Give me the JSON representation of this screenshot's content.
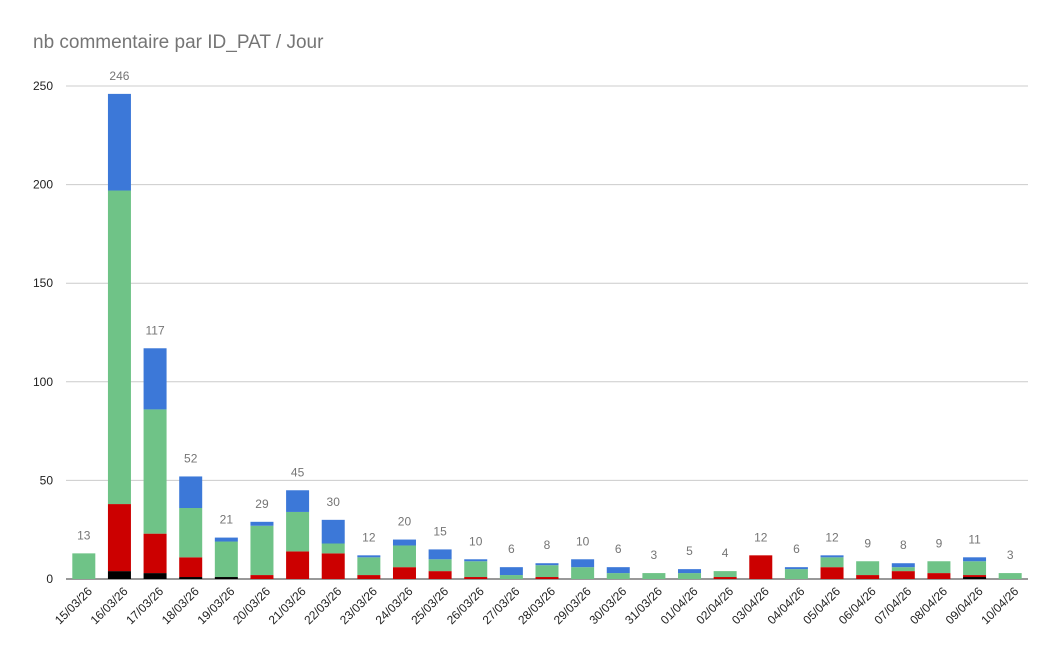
{
  "chart_data": {
    "type": "bar",
    "stacked": true,
    "title": "nb commentaire par ID_PAT / Jour",
    "ylim": [
      0,
      250
    ],
    "yticks": [
      0,
      50,
      100,
      150,
      200,
      250
    ],
    "grid": true,
    "categories": [
      "15/03/26",
      "16/03/26",
      "17/03/26",
      "18/03/26",
      "19/03/26",
      "20/03/26",
      "21/03/26",
      "22/03/26",
      "23/03/26",
      "24/03/26",
      "25/03/26",
      "26/03/26",
      "27/03/26",
      "28/03/26",
      "29/03/26",
      "30/03/26",
      "31/03/26",
      "01/04/26",
      "02/04/26",
      "03/04/26",
      "04/04/26",
      "05/04/26",
      "06/04/26",
      "07/04/26",
      "08/04/26",
      "09/04/26",
      "10/04/26"
    ],
    "series": [
      {
        "color": "#000000",
        "values": [
          0,
          4,
          3,
          1,
          1,
          0,
          0,
          0,
          0,
          0,
          0,
          0,
          0,
          0,
          0,
          0,
          0,
          0,
          0,
          0,
          0,
          0,
          0,
          0,
          0,
          1,
          0
        ]
      },
      {
        "color": "#cc0000",
        "values": [
          0,
          34,
          20,
          10,
          0,
          2,
          14,
          13,
          2,
          6,
          4,
          1,
          0,
          1,
          0,
          0,
          0,
          0,
          1,
          12,
          0,
          6,
          2,
          4,
          3,
          1,
          0
        ]
      },
      {
        "color": "#6fc387",
        "values": [
          13,
          159,
          63,
          25,
          18,
          25,
          20,
          5,
          9,
          11,
          6,
          8,
          2,
          6,
          6,
          3,
          3,
          3,
          3,
          0,
          5,
          5,
          7,
          2,
          6,
          7,
          3
        ]
      },
      {
        "color": "#3c78d8",
        "values": [
          0,
          49,
          31,
          16,
          2,
          2,
          11,
          12,
          1,
          3,
          5,
          1,
          4,
          1,
          4,
          3,
          0,
          2,
          0,
          0,
          1,
          1,
          0,
          2,
          0,
          2,
          0
        ]
      }
    ],
    "totals": [
      13,
      246,
      117,
      52,
      21,
      29,
      45,
      30,
      12,
      20,
      15,
      10,
      6,
      8,
      10,
      6,
      3,
      5,
      4,
      12,
      6,
      12,
      9,
      8,
      9,
      11,
      3
    ]
  }
}
